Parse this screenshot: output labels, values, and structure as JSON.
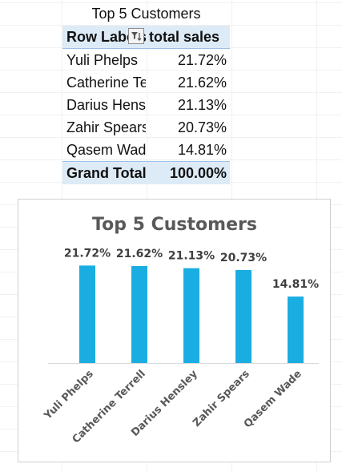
{
  "pivot": {
    "title": "Top 5 Customers",
    "header": {
      "row_labels": "Row Labels",
      "total_sales": "total sales"
    },
    "rows": [
      {
        "label": "Yuli Phelps",
        "value": "21.72%"
      },
      {
        "label": "Catherine Terrell",
        "value": "21.62%"
      },
      {
        "label": "Darius Hensley",
        "value": "21.13%"
      },
      {
        "label": "Zahir Spears",
        "value": "20.73%"
      },
      {
        "label": "Qasem Wade",
        "value": "14.81%"
      }
    ],
    "total": {
      "label": "Grand Total",
      "value": "100.00%"
    },
    "filter_icon": "filter-sort-icon"
  },
  "chart_data": {
    "type": "bar",
    "title": "Top 5 Customers",
    "categories": [
      "Yuli Phelps",
      "Catherine Terrell",
      "Darius Hensley",
      "Zahir Spears",
      "Qasem Wade"
    ],
    "values": [
      21.72,
      21.62,
      21.13,
      20.73,
      14.81
    ],
    "data_labels": [
      "21.72%",
      "21.62%",
      "21.13%",
      "20.73%",
      "14.81%"
    ],
    "ylim": [
      0,
      25
    ],
    "grid": false,
    "legend": "none",
    "bar_color": "#1aade2"
  }
}
